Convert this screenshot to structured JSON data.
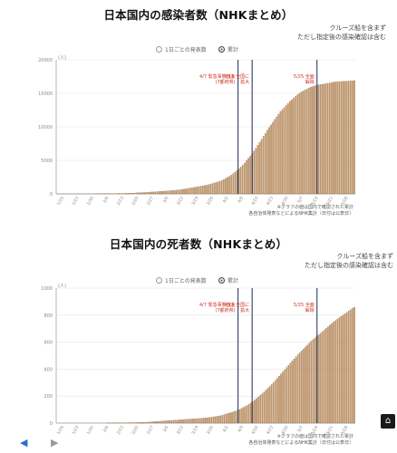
{
  "colors": {
    "bar": "#c89d6e",
    "bar_edge": "#8a5a2e",
    "vline": "#1a2a5a",
    "event_text": "#cc3322",
    "grid": "#e5e5e5",
    "axis": "#999999"
  },
  "toggle": {
    "daily_label": "1日ごとの発表数",
    "cumulative_label": "累計"
  },
  "nav": {
    "prev": "◀",
    "next": "▶",
    "home": "⌂"
  },
  "charts": [
    {
      "id": "infections",
      "title": "日本国内の感染者数（NHKまとめ）",
      "note_lines": [
        "クルーズ船を含まず",
        "ただし指定後の感染確認は含む"
      ],
      "source_lines": [
        "※グラフの値は国内で確認された累計",
        "各自治体発表などによるNHK集計（日付は公表日）"
      ],
      "unit": "(人)",
      "events": [
        {
          "label_lines": [
            "4/7 緊急事態宣言",
            "(7都府県)"
          ],
          "vline_frac": 0.608
        },
        {
          "label_lines": [
            "4/16 全国に",
            "拡大"
          ],
          "vline_frac": 0.655
        },
        {
          "label_lines": [
            "5/25 全面",
            "解除"
          ],
          "vline_frac": 0.872
        }
      ],
      "chart_data": {
        "type": "bar",
        "ylim": [
          0,
          20000
        ],
        "yticks": [
          0,
          5000,
          10000,
          15000,
          20000
        ],
        "ytick_labels": [
          "0",
          "5000",
          "10000",
          "15000",
          "20000"
        ],
        "xtick_labels": [
          "1/16",
          "1/23",
          "1/30",
          "2/6",
          "2/13",
          "2/20",
          "2/27",
          "3/5",
          "3/12",
          "3/19",
          "3/26",
          "4/2",
          "4/9",
          "4/16",
          "4/23",
          "4/30",
          "5/7",
          "5/14",
          "5/21",
          "5/28"
        ],
        "values": [
          1,
          1,
          1,
          2,
          2,
          3,
          3,
          4,
          4,
          5,
          5,
          6,
          6,
          7,
          7,
          8,
          9,
          10,
          11,
          12,
          14,
          16,
          18,
          20,
          22,
          26,
          30,
          34,
          38,
          42,
          46,
          50,
          55,
          60,
          66,
          72,
          80,
          90,
          100,
          110,
          120,
          135,
          150,
          165,
          180,
          195,
          210,
          225,
          240,
          260,
          280,
          300,
          320,
          340,
          360,
          380,
          400,
          420,
          440,
          460,
          480,
          500,
          530,
          560,
          590,
          620,
          660,
          700,
          750,
          800,
          850,
          900,
          950,
          1000,
          1050,
          1100,
          1150,
          1200,
          1250,
          1300,
          1380,
          1460,
          1540,
          1620,
          1700,
          1800,
          1900,
          2000,
          2150,
          2300,
          2450,
          2600,
          2800,
          3000,
          3250,
          3500,
          3750,
          4000,
          4300,
          4600,
          4950,
          5300,
          5650,
          6000,
          6400,
          6800,
          7250,
          7700,
          8150,
          8600,
          9050,
          9500,
          9900,
          10300,
          10700,
          11100,
          11500,
          11900,
          12300,
          12600,
          12900,
          13200,
          13500,
          13800,
          14050,
          14300,
          14550,
          14800,
          15000,
          15200,
          15350,
          15500,
          15650,
          15800,
          15900,
          16000,
          16100,
          16200,
          16250,
          16300,
          16350,
          16400,
          16450,
          16500,
          16550,
          16600,
          16650,
          16700,
          16720,
          16740,
          16760,
          16780,
          16800,
          16820,
          16840,
          16860,
          16880,
          16900
        ]
      }
    },
    {
      "id": "deaths",
      "title": "日本国内の死者数（NHKまとめ）",
      "note_lines": [
        "クルーズ船を含まず",
        "ただし指定後の感染確認は含む"
      ],
      "source_lines": [
        "※グラフの値は国内で確認された累計",
        "各自治体発表などによるNHK集計（日付は公表日）"
      ],
      "unit": "(人)",
      "events": [
        {
          "label_lines": [
            "4/7 緊急事態宣言",
            "(7都府県)"
          ],
          "vline_frac": 0.608
        },
        {
          "label_lines": [
            "4/16 全国に",
            "拡大"
          ],
          "vline_frac": 0.655
        },
        {
          "label_lines": [
            "5/25 全面",
            "解除"
          ],
          "vline_frac": 0.872
        }
      ],
      "chart_data": {
        "type": "bar",
        "ylim": [
          0,
          1000
        ],
        "yticks": [
          0,
          200,
          400,
          600,
          800,
          1000
        ],
        "ytick_labels": [
          "0",
          "200",
          "400",
          "600",
          "800",
          "1000"
        ],
        "xtick_labels": [
          "1/16",
          "1/23",
          "1/30",
          "2/6",
          "2/13",
          "2/20",
          "2/27",
          "3/5",
          "3/12",
          "3/19",
          "3/26",
          "4/2",
          "4/9",
          "4/16",
          "4/23",
          "4/30",
          "5/7",
          "5/14",
          "5/21",
          "5/28"
        ],
        "values": [
          0,
          0,
          0,
          0,
          0,
          0,
          0,
          0,
          0,
          0,
          0,
          0,
          0,
          0,
          0,
          0,
          0,
          0,
          0,
          0,
          0,
          0,
          0,
          0,
          0,
          0,
          0,
          1,
          1,
          1,
          1,
          1,
          1,
          1,
          1,
          2,
          2,
          2,
          3,
          3,
          3,
          4,
          4,
          5,
          5,
          6,
          6,
          6,
          7,
          8,
          9,
          10,
          11,
          12,
          13,
          14,
          15,
          16,
          17,
          18,
          19,
          20,
          21,
          22,
          23,
          24,
          25,
          26,
          27,
          28,
          29,
          30,
          31,
          32,
          33,
          34,
          35,
          36,
          37,
          38,
          40,
          42,
          44,
          46,
          48,
          50,
          53,
          56,
          60,
          64,
          68,
          72,
          76,
          80,
          85,
          90,
          95,
          100,
          108,
          116,
          124,
          132,
          140,
          150,
          160,
          170,
          182,
          194,
          206,
          218,
          230,
          244,
          258,
          272,
          286,
          300,
          316,
          332,
          348,
          364,
          380,
          396,
          412,
          428,
          444,
          460,
          476,
          492,
          508,
          522,
          536,
          550,
          564,
          578,
          592,
          606,
          618,
          630,
          642,
          654,
          666,
          678,
          690,
          702,
          714,
          726,
          738,
          750,
          760,
          770,
          780,
          790,
          800,
          810,
          820,
          830,
          840,
          850,
          858
        ]
      }
    }
  ]
}
